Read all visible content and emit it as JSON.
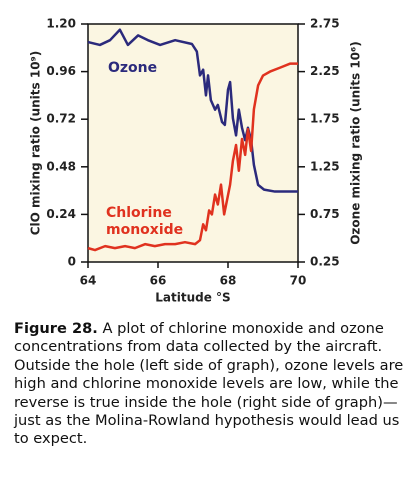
{
  "chart_data": {
    "type": "line",
    "x_label": "Latitude °S",
    "y_label": "ClO mixing ratio (units 10⁹)",
    "y2_label": "Ozone mixing ratio (units 10⁶)",
    "xlim": [
      64,
      70
    ],
    "xticks": [
      64,
      66,
      68,
      70
    ],
    "ylim": [
      0,
      1.2
    ],
    "yticks": [
      0,
      0.24,
      0.48,
      0.72,
      0.96,
      {
        "value": 1.2,
        "label": "1.20"
      }
    ],
    "y2lim": [
      0.25,
      2.75
    ],
    "y2ticks": [
      0.25,
      0.75,
      1.25,
      1.75,
      2.25,
      2.75
    ],
    "series": [
      {
        "name": "Ozone",
        "color": "#2b2a7c",
        "axis": "y2",
        "x": [
          64.0,
          64.34,
          64.63,
          64.91,
          65.14,
          65.43,
          65.71,
          66.06,
          66.49,
          66.97,
          67.11,
          67.2,
          67.29,
          67.37,
          67.43,
          67.51,
          67.63,
          67.71,
          67.83,
          67.91,
          68.0,
          68.06,
          68.14,
          68.23,
          68.31,
          68.4,
          68.49,
          68.57,
          68.66,
          68.74,
          68.86,
          69.03,
          69.34,
          70.0
        ],
        "values": [
          2.56,
          2.53,
          2.58,
          2.69,
          2.53,
          2.63,
          2.58,
          2.53,
          2.58,
          2.54,
          2.46,
          2.21,
          2.27,
          2.0,
          2.21,
          1.95,
          1.85,
          1.9,
          1.72,
          1.69,
          2.06,
          2.14,
          1.76,
          1.58,
          1.85,
          1.66,
          1.53,
          1.66,
          1.53,
          1.27,
          1.06,
          1.01,
          0.99,
          0.99
        ]
      },
      {
        "name": "Chlorine monoxide",
        "color": "#e0321f",
        "axis": "y",
        "x": [
          64.0,
          64.2,
          64.49,
          64.77,
          65.06,
          65.34,
          65.63,
          65.91,
          66.2,
          66.49,
          66.77,
          67.06,
          67.2,
          67.29,
          67.37,
          67.46,
          67.54,
          67.63,
          67.71,
          67.8,
          67.89,
          67.97,
          68.06,
          68.14,
          68.23,
          68.31,
          68.4,
          68.49,
          68.57,
          68.66,
          68.74,
          68.86,
          69.0,
          69.2,
          69.49,
          69.77,
          70.0
        ],
        "values": [
          0.07,
          0.06,
          0.08,
          0.07,
          0.08,
          0.07,
          0.09,
          0.08,
          0.09,
          0.09,
          0.1,
          0.09,
          0.11,
          0.19,
          0.16,
          0.26,
          0.24,
          0.34,
          0.29,
          0.39,
          0.24,
          0.31,
          0.39,
          0.51,
          0.59,
          0.46,
          0.62,
          0.54,
          0.67,
          0.56,
          0.77,
          0.89,
          0.94,
          0.96,
          0.98,
          1.0,
          1.0
        ]
      }
    ]
  },
  "caption": {
    "label": "Figure 28.",
    "text": "A plot of chlorine monoxide and ozone concentrations from data collected by the aircraft. Outside the hole (left side of graph), ozone levels are high and chlorine monoxide levels are low, while the reverse is true inside the hole (right side of graph)—just as the Molina-Rowland hypothesis would lead us to expect."
  }
}
